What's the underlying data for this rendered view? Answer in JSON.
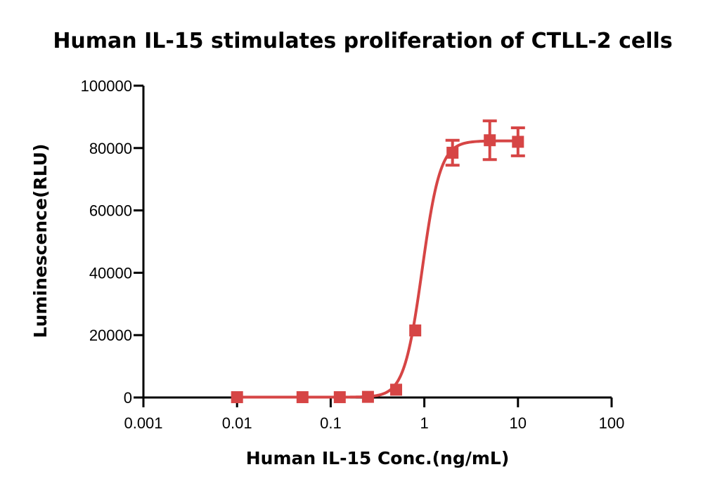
{
  "colors": {
    "series": "#d64545",
    "axis": "#000000",
    "background": "#ffffff"
  },
  "chart_data": {
    "type": "scatter",
    "title": "Human IL-15 stimulates proliferation of CTLL-2 cells",
    "xlabel": "Human IL-15 Conc.(ng/mL)",
    "ylabel": "Luminescence(RLU)",
    "x_scale": "log",
    "xlim": [
      0.001,
      100
    ],
    "ylim": [
      0,
      100000
    ],
    "x_ticks": [
      "0.001",
      "0.01",
      "0.1",
      "1",
      "10",
      "100"
    ],
    "y_ticks": [
      "0",
      "20000",
      "40000",
      "60000",
      "80000",
      "100000"
    ],
    "series": [
      {
        "marker": "square",
        "fit": "four-parameter logistic",
        "points": [
          {
            "x": 0.01,
            "y": 100,
            "error": 0
          },
          {
            "x": 0.05,
            "y": 100,
            "error": 0
          },
          {
            "x": 0.125,
            "y": 100,
            "error": 0
          },
          {
            "x": 0.25,
            "y": 200,
            "error": 0
          },
          {
            "x": 0.5,
            "y": 2500,
            "error": 0
          },
          {
            "x": 0.8,
            "y": 21500,
            "error": 0
          },
          {
            "x": 2,
            "y": 78500,
            "error": 4000
          },
          {
            "x": 5,
            "y": 82500,
            "error": 6200
          },
          {
            "x": 10,
            "y": 82000,
            "error": 4500
          }
        ]
      }
    ]
  }
}
